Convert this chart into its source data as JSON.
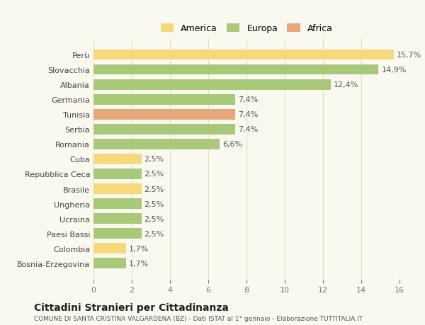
{
  "categories": [
    "Bosnia-Erzegovina",
    "Colombia",
    "Paesi Bassi",
    "Ucraina",
    "Ungheria",
    "Brasile",
    "Repubblica Ceca",
    "Cuba",
    "Romania",
    "Serbia",
    "Tunisia",
    "Germania",
    "Albania",
    "Slovacchia",
    "Perù"
  ],
  "values": [
    1.7,
    1.7,
    2.5,
    2.5,
    2.5,
    2.5,
    2.5,
    2.5,
    6.6,
    7.4,
    7.4,
    7.4,
    12.4,
    14.9,
    15.7
  ],
  "colors": [
    "#a8c87a",
    "#f7d87a",
    "#a8c87a",
    "#a8c87a",
    "#a8c87a",
    "#f7d87a",
    "#a8c87a",
    "#f7d87a",
    "#a8c87a",
    "#a8c87a",
    "#e8a87a",
    "#a8c87a",
    "#a8c87a",
    "#a8c87a",
    "#f7d87a"
  ],
  "labels": [
    "1,7%",
    "1,7%",
    "2,5%",
    "2,5%",
    "2,5%",
    "2,5%",
    "2,5%",
    "2,5%",
    "6,6%",
    "7,4%",
    "7,4%",
    "7,4%",
    "12,4%",
    "14,9%",
    "15,7%"
  ],
  "legend": [
    {
      "label": "America",
      "color": "#f7d87a"
    },
    {
      "label": "Europa",
      "color": "#a8c87a"
    },
    {
      "label": "Africa",
      "color": "#e8a87a"
    }
  ],
  "xlim": [
    0,
    16
  ],
  "xticks": [
    0,
    2,
    4,
    6,
    8,
    10,
    12,
    14,
    16
  ],
  "title": "Cittadini Stranieri per Cittadinanza",
  "subtitle": "COMUNE DI SANTA CRISTINA VALGARDENA (BZ) - Dati ISTAT al 1° gennaio - Elaborazione TUTTITALIA.IT",
  "background_color": "#f9f9f0",
  "grid_color": "#ddddcc"
}
